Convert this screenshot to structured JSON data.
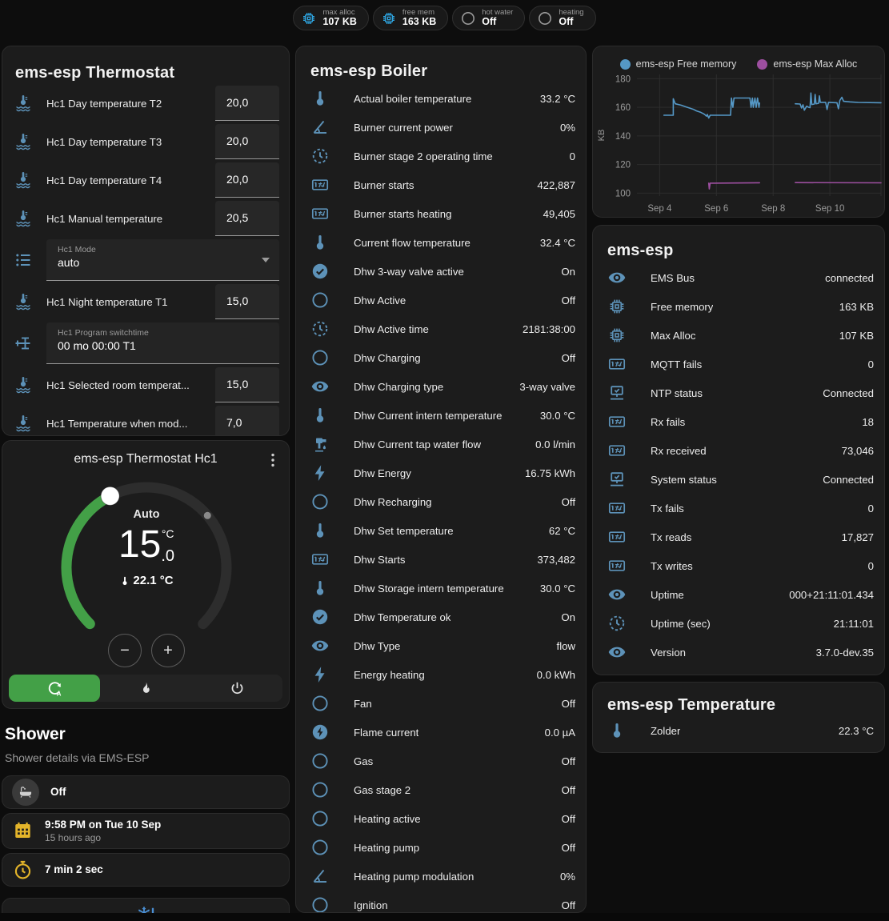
{
  "colors": {
    "card_bg": "#1c1c1c",
    "page_bg": "#0d0d0d",
    "row_icon": "#5d92b8",
    "accent_green": "#43a047",
    "badge_blue": "#2fa7e3",
    "badge_gray": "#9a9a9a",
    "yellow": "#e3b42a",
    "snowflake_blue": "#4a8fd4",
    "chart_blue": "#5598c6",
    "chart_purple": "#9d4fa0"
  },
  "top_badges": [
    {
      "icon": "chip",
      "icon_color": "#2fa7e3",
      "label": "max alloc",
      "value": "107 KB"
    },
    {
      "icon": "chip",
      "icon_color": "#2fa7e3",
      "label": "free mem",
      "value": "163 KB"
    },
    {
      "icon": "circle",
      "icon_color": "#9a9a9a",
      "label": "hot water",
      "value": "Off"
    },
    {
      "icon": "circle",
      "icon_color": "#9a9a9a",
      "label": "heating",
      "value": "Off"
    }
  ],
  "thermostat_panel": {
    "title": "ems-esp Thermostat",
    "rows": [
      {
        "type": "number",
        "icon": "thermo-waves",
        "label": "Hc1 Day temperature T2",
        "value": "20,0"
      },
      {
        "type": "number",
        "icon": "thermo-waves",
        "label": "Hc1 Day temperature T3",
        "value": "20,0"
      },
      {
        "type": "number",
        "icon": "thermo-waves",
        "label": "Hc1 Day temperature T4",
        "value": "20,0"
      },
      {
        "type": "number",
        "icon": "thermo-waves",
        "label": "Hc1 Manual temperature",
        "value": "20,5"
      },
      {
        "type": "select",
        "icon": "list",
        "label": "Hc1 Mode",
        "value": "auto"
      },
      {
        "type": "number",
        "icon": "thermo-waves",
        "label": "Hc1 Night temperature T1",
        "value": "15,0"
      },
      {
        "type": "textbox",
        "icon": "valve",
        "label": "Hc1 Program switchtime",
        "value": "00 mo 00:00 T1"
      },
      {
        "type": "number",
        "icon": "thermo-waves",
        "label": "Hc1 Selected room temperat...",
        "value": "15,0"
      },
      {
        "type": "number",
        "icon": "thermo-waves",
        "label": "Hc1 Temperature when mod...",
        "value": "7,0"
      }
    ]
  },
  "dial_card": {
    "title": "ems-esp Thermostat Hc1",
    "mode_label": "Auto",
    "target_int": "15",
    "target_unit": "°C",
    "target_dec": ".0",
    "current_temp": "22.1 °C",
    "minus": "−",
    "plus": "+",
    "min": 5,
    "max": 30,
    "target": 15.0,
    "current": 22.1,
    "modes": [
      {
        "icon": "thermostat-auto",
        "active": true
      },
      {
        "icon": "fire",
        "active": false
      },
      {
        "icon": "power",
        "active": false
      }
    ]
  },
  "shower": {
    "title": "Shower",
    "subtitle": "Shower details via EMS-ESP",
    "state_card": {
      "icon": "bathtub",
      "line1": "Off"
    },
    "time_card": {
      "icon": "calendar-clock",
      "line1": "9:58 PM on Tue 10 Sep",
      "line2": "15 hours ago"
    },
    "duration_card": {
      "icon": "timer",
      "line1": "7 min 2 sec"
    },
    "alert_card": {
      "icon": "snowflake-alert"
    }
  },
  "boiler_panel": {
    "title": "ems-esp Boiler",
    "rows": [
      {
        "icon": "thermometer",
        "label": "Actual boiler temperature",
        "value": "33.2 °C"
      },
      {
        "icon": "angle",
        "label": "Burner current power",
        "value": "0%"
      },
      {
        "icon": "progress-clock",
        "label": "Burner stage 2 operating time",
        "value": "0"
      },
      {
        "icon": "counter",
        "label": "Burner starts",
        "value": "422,887"
      },
      {
        "icon": "counter",
        "label": "Burner starts heating",
        "value": "49,405"
      },
      {
        "icon": "thermometer",
        "label": "Current flow temperature",
        "value": "32.4 °C"
      },
      {
        "icon": "check-circle",
        "label": "Dhw 3-way valve active",
        "value": "On"
      },
      {
        "icon": "circle",
        "label": "Dhw Active",
        "value": "Off"
      },
      {
        "icon": "progress-clock",
        "label": "Dhw Active time",
        "value": "2181:38:00"
      },
      {
        "icon": "circle",
        "label": "Dhw Charging",
        "value": "Off"
      },
      {
        "icon": "eye",
        "label": "Dhw Charging type",
        "value": "3-way valve"
      },
      {
        "icon": "thermometer",
        "label": "Dhw Current intern temperature",
        "value": "30.0 °C"
      },
      {
        "icon": "pump",
        "label": "Dhw Current tap water flow",
        "value": "0.0 l/min"
      },
      {
        "icon": "flash",
        "label": "Dhw Energy",
        "value": "16.75 kWh"
      },
      {
        "icon": "circle",
        "label": "Dhw Recharging",
        "value": "Off"
      },
      {
        "icon": "thermometer",
        "label": "Dhw Set temperature",
        "value": "62 °C"
      },
      {
        "icon": "counter",
        "label": "Dhw Starts",
        "value": "373,482"
      },
      {
        "icon": "thermometer",
        "label": "Dhw Storage intern temperature",
        "value": "30.0 °C"
      },
      {
        "icon": "check-circle",
        "label": "Dhw Temperature ok",
        "value": "On"
      },
      {
        "icon": "eye",
        "label": "Dhw Type",
        "value": "flow"
      },
      {
        "icon": "flash",
        "label": "Energy heating",
        "value": "0.0 kWh"
      },
      {
        "icon": "circle",
        "label": "Fan",
        "value": "Off"
      },
      {
        "icon": "flash-circle",
        "label": "Flame current",
        "value": "0.0 µA"
      },
      {
        "icon": "circle",
        "label": "Gas",
        "value": "Off"
      },
      {
        "icon": "circle",
        "label": "Gas stage 2",
        "value": "Off"
      },
      {
        "icon": "circle",
        "label": "Heating active",
        "value": "Off"
      },
      {
        "icon": "circle",
        "label": "Heating pump",
        "value": "Off"
      },
      {
        "icon": "angle",
        "label": "Heating pump modulation",
        "value": "0%"
      },
      {
        "icon": "circle",
        "label": "Ignition",
        "value": "Off"
      }
    ]
  },
  "chart_data": {
    "type": "line",
    "ylabel": "KB",
    "xlim": [
      3.2,
      11.8
    ],
    "ylim": [
      98,
      183
    ],
    "y_ticks": [
      100,
      120,
      140,
      160,
      180
    ],
    "x_ticks": [
      {
        "x": 4,
        "label": "Sep 4"
      },
      {
        "x": 6,
        "label": "Sep 6"
      },
      {
        "x": 8,
        "label": "Sep 8"
      },
      {
        "x": 10,
        "label": "Sep 10"
      }
    ],
    "grid": true,
    "legend_position": "top",
    "series": [
      {
        "name": "ems-esp Free memory",
        "color": "#5598c6",
        "segments": [
          [
            [
              4.15,
              154.5
            ],
            [
              4.48,
              154.5
            ],
            [
              4.48,
              166
            ],
            [
              4.55,
              162.5
            ],
            [
              4.75,
              161.5
            ],
            [
              4.9,
              160.5
            ],
            [
              5.05,
              159.5
            ],
            [
              5.2,
              158.5
            ],
            [
              5.3,
              157.5
            ],
            [
              5.45,
              156.5
            ],
            [
              5.55,
              155.5
            ],
            [
              5.6,
              154.8
            ],
            [
              5.65,
              153.8
            ],
            [
              5.68,
              155
            ],
            [
              5.73,
              152.5
            ],
            [
              5.78,
              154.5
            ],
            [
              6.5,
              154.5
            ],
            [
              6.53,
              166.5
            ],
            [
              6.58,
              160
            ],
            [
              6.62,
              166.5
            ],
            [
              7.18,
              166.5
            ],
            [
              7.22,
              160
            ],
            [
              7.27,
              166.5
            ],
            [
              7.3,
              160
            ],
            [
              7.36,
              166.5
            ],
            [
              7.4,
              160
            ],
            [
              7.45,
              166.5
            ],
            [
              7.5,
              160
            ],
            [
              7.52,
              163
            ]
          ],
          [
            [
              8.78,
              162.5
            ],
            [
              8.95,
              162.3
            ],
            [
              9.0,
              159.5
            ],
            [
              9.05,
              161.8
            ],
            [
              9.1,
              158
            ],
            [
              9.18,
              160.8
            ],
            [
              9.25,
              160
            ],
            [
              9.3,
              159.8
            ],
            [
              9.33,
              170
            ],
            [
              9.36,
              162
            ],
            [
              9.45,
              162.3
            ],
            [
              9.48,
              169
            ],
            [
              9.51,
              162.5
            ],
            [
              9.6,
              162.8
            ],
            [
              9.63,
              168
            ],
            [
              9.66,
              163.5
            ],
            [
              9.85,
              163.5
            ],
            [
              9.9,
              158.5
            ],
            [
              9.95,
              163.5
            ],
            [
              10.25,
              163.2
            ],
            [
              10.3,
              159
            ],
            [
              10.35,
              164.8
            ],
            [
              10.42,
              167
            ],
            [
              10.48,
              164.2
            ],
            [
              10.7,
              163.8
            ],
            [
              11.0,
              163.4
            ],
            [
              11.8,
              163.2
            ]
          ]
        ]
      },
      {
        "name": "ems-esp Max Alloc",
        "color": "#9d4fa0",
        "segments": [
          [
            [
              5.73,
              107
            ],
            [
              5.75,
              103
            ],
            [
              5.78,
              107
            ],
            [
              7.52,
              107.3
            ]
          ],
          [
            [
              8.78,
              107.4
            ],
            [
              11.8,
              107.2
            ]
          ]
        ]
      }
    ]
  },
  "emsesp_panel": {
    "title": "ems-esp",
    "rows": [
      {
        "icon": "eye",
        "label": "EMS Bus",
        "value": "connected"
      },
      {
        "icon": "chip",
        "label": "Free memory",
        "value": "163 KB"
      },
      {
        "icon": "chip",
        "label": "Max Alloc",
        "value": "107 KB"
      },
      {
        "icon": "counter",
        "label": "MQTT fails",
        "value": "0"
      },
      {
        "icon": "network",
        "label": "NTP status",
        "value": "Connected"
      },
      {
        "icon": "counter",
        "label": "Rx fails",
        "value": "18"
      },
      {
        "icon": "counter",
        "label": "Rx received",
        "value": "73,046"
      },
      {
        "icon": "network",
        "label": "System status",
        "value": "Connected"
      },
      {
        "icon": "counter",
        "label": "Tx fails",
        "value": "0"
      },
      {
        "icon": "counter",
        "label": "Tx reads",
        "value": "17,827"
      },
      {
        "icon": "counter",
        "label": "Tx writes",
        "value": "0"
      },
      {
        "icon": "eye",
        "label": "Uptime",
        "value": "000+21:11:01.434"
      },
      {
        "icon": "progress-clock",
        "label": "Uptime (sec)",
        "value": "21:11:01"
      },
      {
        "icon": "eye",
        "label": "Version",
        "value": "3.7.0-dev.35"
      }
    ]
  },
  "temperature_panel": {
    "title": "ems-esp Temperature",
    "rows": [
      {
        "icon": "thermometer",
        "label": "Zolder",
        "value": "22.3 °C"
      }
    ]
  }
}
